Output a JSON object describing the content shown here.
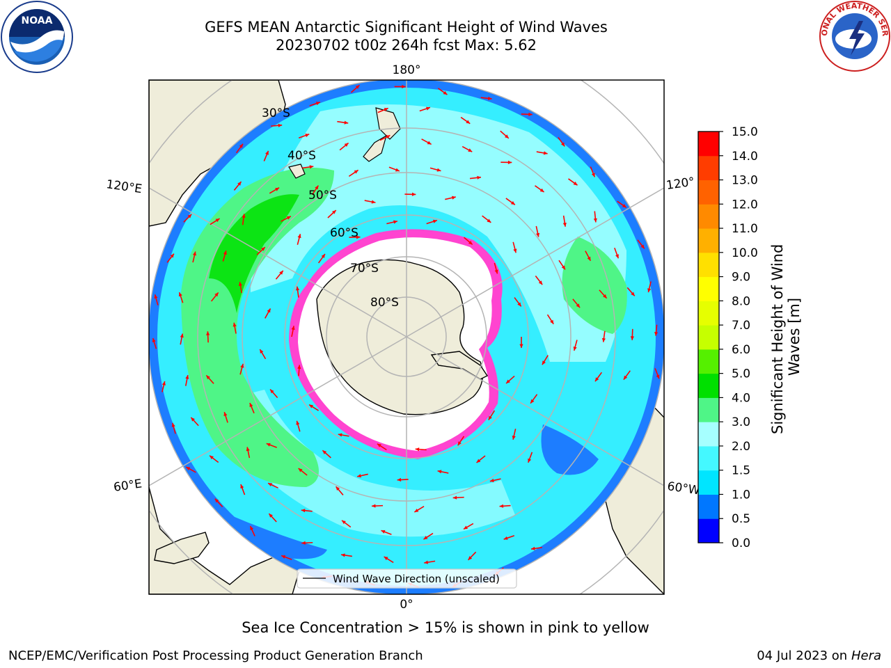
{
  "header": {
    "title_line1": "GEFS MEAN Antarctic Significant Height of Wind Waves",
    "title_line2": "20230702 t00z 264h fcst   Max: 5.62"
  },
  "map": {
    "projection": "south-polar-stereographic",
    "meridian_labels": {
      "top": "180°",
      "bottom": "0°",
      "upper_left": "120°E",
      "upper_right": "120°",
      "lower_left": "60°E",
      "lower_right": "60°W"
    },
    "latitude_labels": [
      "30°S",
      "40°S",
      "50°S",
      "60°S",
      "70°S",
      "80°S"
    ],
    "legend_label": "Wind Wave Direction (unscaled)",
    "ocean_color": "#33f5ff",
    "land_color": "#efedda",
    "ice_free_color": "#ffffff",
    "arrow_color": "#ff0000"
  },
  "colorbar": {
    "label": "Significant Height of Wind Waves [m]",
    "ticks": [
      "0.0",
      "0.5",
      "1.0",
      "1.5",
      "2.0",
      "3.0",
      "4.0",
      "5.0",
      "6.0",
      "7.0",
      "8.0",
      "9.0",
      "10.0",
      "11.0",
      "12.0",
      "13.0",
      "14.0",
      "15.0"
    ],
    "colors": [
      "#0000ff",
      "#0077ff",
      "#00e5ff",
      "#44f8ff",
      "#a6ffff",
      "#4ff587",
      "#00e000",
      "#55f000",
      "#c6ff00",
      "#e6ff00",
      "#ffff00",
      "#ffe000",
      "#ffb000",
      "#ff8a00",
      "#ff6200",
      "#ff3d00",
      "#ff0000"
    ]
  },
  "notes": {
    "ice": "Sea Ice Concentration > 15% is shown in pink to yellow"
  },
  "footer": {
    "left": "NCEP/EMC/Verification Post Processing Product Generation Branch",
    "right_date": "04 Jul 2023 on ",
    "right_system": "Hera"
  },
  "logos": {
    "left": "NOAA",
    "right": "NATIONAL WEATHER SERVICE"
  }
}
